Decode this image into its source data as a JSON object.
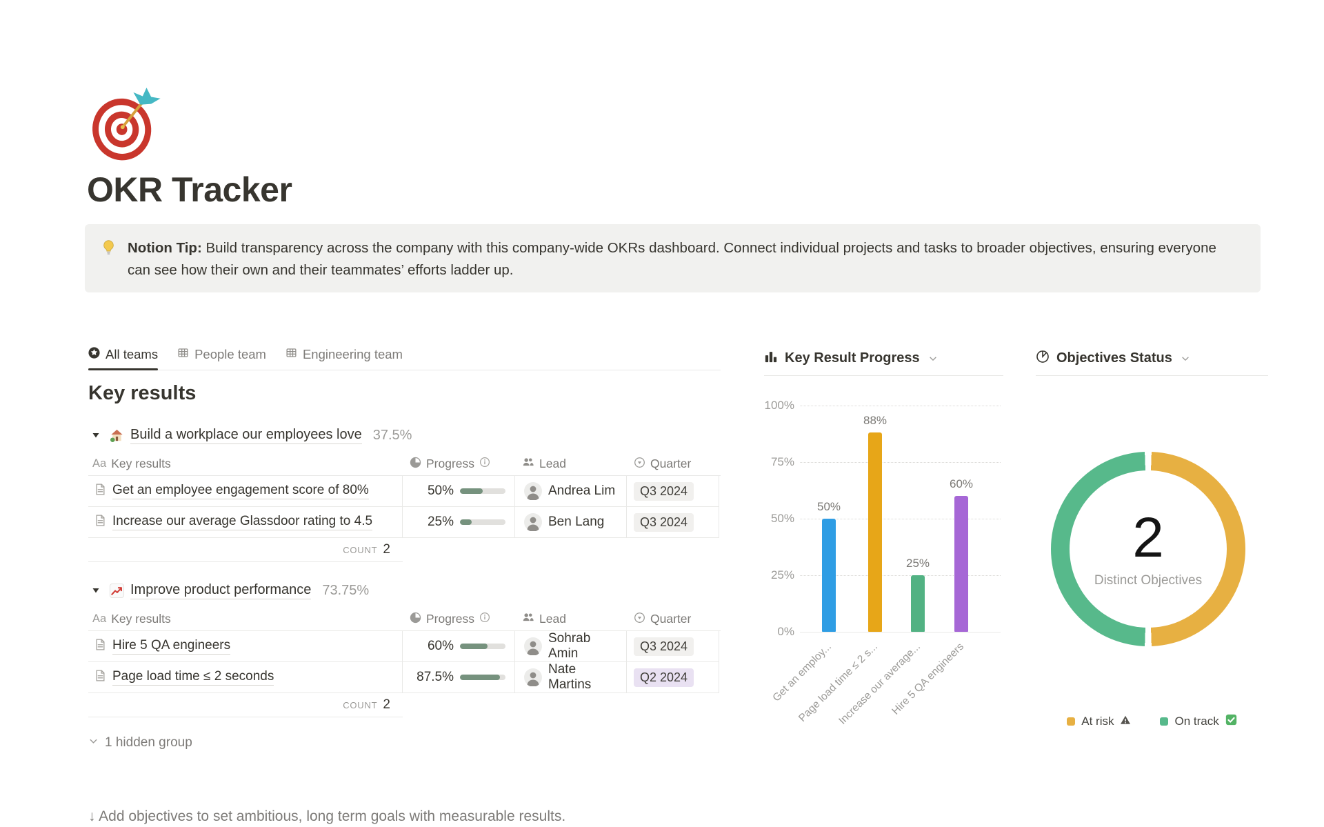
{
  "page": {
    "title": "OKR Tracker",
    "icon": "dart-target-emoji",
    "tip": {
      "label": "Notion Tip:",
      "text": "Build transparency across the company with this company-wide OKRs dashboard. Connect individual projects and tasks to broader objectives, ensuring everyone can see how their own and their teammates’ efforts ladder up."
    },
    "footer_hint": "↓ Add objectives to set ambitious, long term goals with measurable results."
  },
  "tabs": [
    {
      "label": "All teams",
      "icon": "star-circle-icon",
      "active": true
    },
    {
      "label": "People team",
      "icon": "table-icon",
      "active": false
    },
    {
      "label": "Engineering team",
      "icon": "table-icon",
      "active": false
    }
  ],
  "key_results": {
    "heading": "Key results",
    "columns": {
      "name_prefix": "Aa",
      "name": "Key results",
      "progress": "Progress",
      "lead": "Lead",
      "quarter": "Quarter"
    },
    "groups": [
      {
        "emoji": "house-with-garden",
        "title": "Build a workplace our employees love",
        "percent": "37.5%",
        "rows": [
          {
            "name": "Get an employee engagement score of 80%",
            "progress": "50%",
            "progress_value": 50,
            "lead": "Andrea Lim",
            "quarter": "Q3 2024",
            "quarter_color": "gray"
          },
          {
            "name": "Increase our average Glassdoor rating to 4.5",
            "progress": "25%",
            "progress_value": 25,
            "lead": "Ben Lang",
            "quarter": "Q3 2024",
            "quarter_color": "gray"
          }
        ],
        "count_label": "COUNT",
        "count_value": "2"
      },
      {
        "emoji": "chart-increasing",
        "title": "Improve product performance",
        "percent": "73.75%",
        "rows": [
          {
            "name": "Hire 5 QA engineers",
            "progress": "60%",
            "progress_value": 60,
            "lead": "Sohrab Amin",
            "quarter": "Q3 2024",
            "quarter_color": "gray"
          },
          {
            "name": "Page load time ≤ 2 seconds",
            "progress": "87.5%",
            "progress_value": 87.5,
            "lead": "Nate Martins",
            "quarter": "Q2 2024",
            "quarter_color": "purple"
          }
        ],
        "count_label": "COUNT",
        "count_value": "2"
      }
    ],
    "hidden_group": "1 hidden group"
  },
  "chart_data": [
    {
      "type": "bar",
      "title": "Key Result Progress",
      "categories": [
        "Get an employ...",
        "Page load time ≤ 2 s...",
        "Increase our average...",
        "Hire 5 QA engineers"
      ],
      "values": [
        50,
        88,
        25,
        60
      ],
      "labels": [
        "50%",
        "88%",
        "25%",
        "60%"
      ],
      "colors": [
        "#2f9de4",
        "#e7a618",
        "#52b283",
        "#a667d6"
      ],
      "yticks": [
        "100%",
        "75%",
        "50%",
        "25%",
        "0%"
      ],
      "ylim": [
        0,
        100
      ],
      "grid": "dotted-horizontal",
      "legend_position": "none"
    },
    {
      "type": "pie",
      "title": "Objectives Status",
      "center_value": "2",
      "center_label": "Distinct Objectives",
      "slices": [
        {
          "label": "At risk",
          "value": 1,
          "color": "#e7b042",
          "status_icon": "warning"
        },
        {
          "label": "On track",
          "value": 1,
          "color": "#57b98b",
          "status_icon": "check"
        }
      ],
      "legend_position": "bottom"
    }
  ],
  "colors": {
    "progress_fill": "#76927e",
    "progress_track": "#e1e0dd",
    "quarter_gray_bg": "#f1f0ee",
    "quarter_purple_bg": "#e9e1f2",
    "divider": "#e9e9e7",
    "text_primary": "#37352f",
    "text_secondary": "#787774",
    "text_tertiary": "#9b9a97",
    "callout_bg": "#f1f1ef"
  }
}
